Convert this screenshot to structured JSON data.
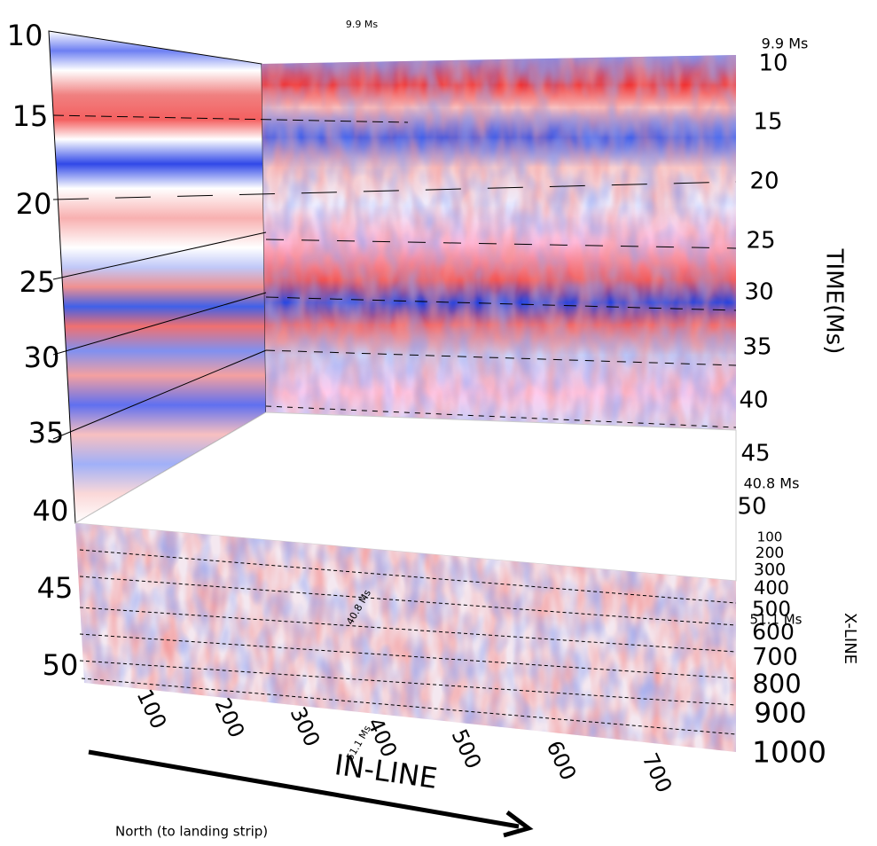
{
  "annotations": {
    "top_center": "9.9 Ms",
    "top_right": "9.9 Ms",
    "mid_right": "40.8 Ms",
    "lower_right": "51.1 Ms",
    "slice_top": "40.8 Ms",
    "slice_bottom": "51.1 Ms"
  },
  "left_time_axis": {
    "ticks": [
      10,
      15,
      20,
      25,
      30,
      35,
      40,
      45,
      50
    ]
  },
  "right_time_axis": {
    "title": "TIME(Ms)",
    "ticks": [
      10,
      15,
      20,
      25,
      30,
      35,
      40,
      45,
      50
    ]
  },
  "xline_axis": {
    "title": "X-LINE",
    "ticks": [
      100,
      200,
      300,
      400,
      500,
      600,
      700,
      800,
      900,
      1000
    ]
  },
  "inline_axis": {
    "title": "IN-LINE",
    "ticks": [
      100,
      200,
      300,
      400,
      500,
      600,
      700
    ]
  },
  "footer": "North (to landing strip)"
}
